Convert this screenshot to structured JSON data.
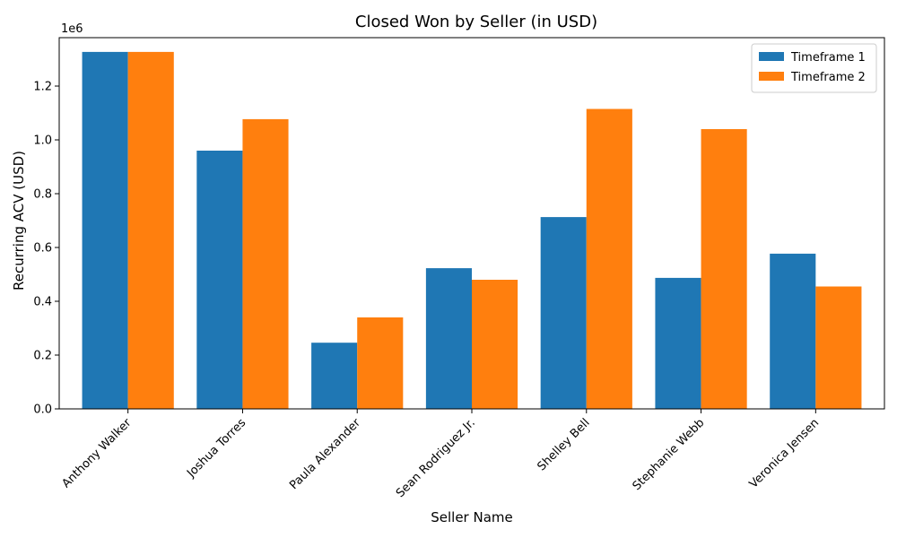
{
  "chart_data": {
    "type": "bar",
    "title": "Closed Won by Seller (in USD)",
    "xlabel": "Seller Name",
    "ylabel": "Recurring ACV (USD)",
    "y_offset_label": "1e6",
    "categories": [
      "Anthony Walker",
      "Joshua Torres",
      "Paula Alexander",
      "Sean Rodriguez Jr.",
      "Shelley Bell",
      "Stephanie Webb",
      "Veronica Jensen"
    ],
    "series": [
      {
        "name": "Timeframe 1",
        "color": "#1f77b4",
        "values": [
          1327000,
          960000,
          246000,
          523000,
          713000,
          487000,
          577000
        ]
      },
      {
        "name": "Timeframe 2",
        "color": "#ff7f0e",
        "values": [
          1327000,
          1077000,
          340000,
          480000,
          1115000,
          1040000,
          455000
        ]
      }
    ],
    "ylim": [
      0,
      1380000
    ],
    "yticks": [
      0,
      200000,
      400000,
      600000,
      800000,
      1000000,
      1200000
    ],
    "ytick_labels": [
      "0.0",
      "0.2",
      "0.4",
      "0.6",
      "0.8",
      "1.0",
      "1.2"
    ],
    "legend_position": "top-right",
    "grid": false
  }
}
